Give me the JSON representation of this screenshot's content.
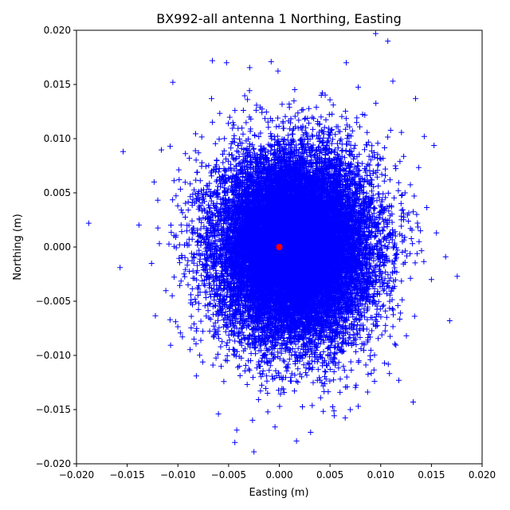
{
  "chart_data": {
    "type": "scatter",
    "title": "BX992-all antenna 1 Northing, Easting",
    "xlabel": "Easting (m)",
    "ylabel": "Northing (m)",
    "xlim": [
      -0.02,
      0.02
    ],
    "ylim": [
      -0.02,
      0.02
    ],
    "xticks": [
      -0.02,
      -0.015,
      -0.01,
      -0.005,
      0.0,
      0.005,
      0.01,
      0.015,
      0.02
    ],
    "yticks": [
      -0.02,
      -0.015,
      -0.01,
      -0.005,
      0.0,
      0.005,
      0.01,
      0.015,
      0.02
    ],
    "xtick_labels": [
      "−0.020",
      "−0.015",
      "−0.010",
      "−0.005",
      "0.000",
      "0.005",
      "0.010",
      "0.015",
      "0.020"
    ],
    "ytick_labels": [
      "−0.020",
      "−0.015",
      "−0.010",
      "−0.005",
      "0.000",
      "0.005",
      "0.010",
      "0.015",
      "0.020"
    ],
    "grid": false,
    "series": [
      {
        "marker": "plus",
        "color": "#0000ff",
        "distribution": {
          "center": [
            0.0015,
            0.0
          ],
          "std_easting": 0.0038,
          "std_northing": 0.0043,
          "count": 18000
        },
        "outliers": [
          [
            -0.0188,
            0.0022
          ],
          [
            0.0095,
            0.0197
          ],
          [
            0.0107,
            0.019
          ],
          [
            -0.0025,
            -0.0189
          ],
          [
            0.0017,
            -0.0179
          ],
          [
            0.0168,
            -0.0068
          ],
          [
            0.0164,
            -0.0009
          ],
          [
            0.0132,
            -0.0143
          ],
          [
            -0.0154,
            0.0088
          ],
          [
            -0.0157,
            -0.0019
          ],
          [
            -0.0066,
            0.0172
          ],
          [
            -0.0052,
            0.017
          ],
          [
            0.0066,
            0.017
          ],
          [
            -0.0008,
            0.0171
          ],
          [
            0.0112,
            0.0153
          ],
          [
            -0.0105,
            0.0152
          ],
          [
            0.0155,
            0.0013
          ],
          [
            0.015,
            -0.003
          ],
          [
            -0.0042,
            -0.0169
          ],
          [
            -0.006,
            -0.0154
          ],
          [
            0.007,
            -0.015
          ]
        ]
      },
      {
        "marker": "circle",
        "color": "#ff0000",
        "points": [
          [
            0.0,
            0.0
          ]
        ]
      }
    ]
  }
}
